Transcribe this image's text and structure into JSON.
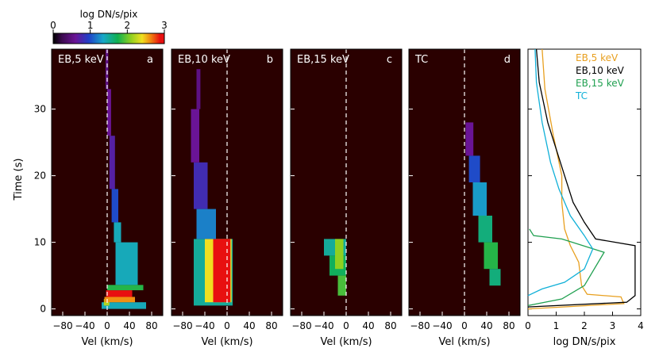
{
  "colorbar": {
    "title": "log DN/s/pix",
    "ticks": [
      "0",
      "1",
      "2",
      "3"
    ],
    "range": [
      0,
      3
    ],
    "colormap": "rainbow (IDL-style: black-purple-blue-cyan-green-yellow-red)"
  },
  "ylabel": "Time (s)",
  "chart_data": [
    {
      "type": "heatmap",
      "panel_label": "EB,5 keV",
      "letter": "a",
      "xlabel": "Vel (km/s)",
      "xlim": [
        -100,
        100
      ],
      "ylim": [
        -1,
        39
      ],
      "xticks": [
        "−80",
        "−40",
        "0",
        "40",
        "80"
      ],
      "yticks": [
        "0",
        "10",
        "20",
        "30"
      ],
      "background": "#2a0000",
      "zero_line": "dashed white at 0 km/s",
      "value_range": [
        0,
        3
      ],
      "cells": [
        {
          "t0": 0,
          "t1": 1,
          "v0": -10,
          "v1": 70,
          "z": 1.4
        },
        {
          "t0": 0.5,
          "t1": 1.5,
          "v0": -6,
          "v1": 4,
          "z": 2.2
        },
        {
          "t0": 1,
          "t1": 1.8,
          "v0": -5,
          "v1": 50,
          "z": 2.6
        },
        {
          "t0": 1.8,
          "t1": 2.8,
          "v0": -2,
          "v1": 45,
          "z": 2.9
        },
        {
          "t0": 2.8,
          "t1": 3.6,
          "v0": 0,
          "v1": 65,
          "z": 1.8
        },
        {
          "t0": 3.6,
          "t1": 10,
          "v0": 15,
          "v1": 55,
          "z": 1.4
        },
        {
          "t0": 10,
          "t1": 13,
          "v0": 12,
          "v1": 25,
          "z": 1.4
        },
        {
          "t0": 13,
          "t1": 18,
          "v0": 8,
          "v1": 20,
          "z": 1.0
        },
        {
          "t0": 18,
          "t1": 26,
          "v0": 4,
          "v1": 14,
          "z": 0.7
        },
        {
          "t0": 26,
          "t1": 33,
          "v0": 0,
          "v1": 7,
          "z": 0.6
        },
        {
          "t0": 33,
          "t1": 39,
          "v0": -3,
          "v1": 2,
          "z": 0.5
        }
      ]
    },
    {
      "type": "heatmap",
      "panel_label": "EB,10 keV",
      "letter": "b",
      "xlabel": "Vel (km/s)",
      "xlim": [
        -100,
        100
      ],
      "ylim": [
        -1,
        39
      ],
      "xticks": [
        "−80",
        "−40",
        "0",
        "40",
        "80"
      ],
      "background": "#2a0000",
      "zero_line": "dashed white at 0 km/s",
      "value_range": [
        0,
        3
      ],
      "cells": [
        {
          "t0": 0.5,
          "t1": 10.5,
          "v0": -60,
          "v1": 10,
          "z": 1.5
        },
        {
          "t0": 1,
          "t1": 10.5,
          "v0": -40,
          "v1": 8,
          "z": 2.4
        },
        {
          "t0": 1,
          "t1": 10.5,
          "v0": -25,
          "v1": 6,
          "z": 2.9
        },
        {
          "t0": 10.5,
          "t1": 15,
          "v0": -55,
          "v1": -20,
          "z": 1.2
        },
        {
          "t0": 15,
          "t1": 22,
          "v0": -60,
          "v1": -35,
          "z": 0.8
        },
        {
          "t0": 22,
          "t1": 30,
          "v0": -65,
          "v1": -50,
          "z": 0.6
        },
        {
          "t0": 30,
          "t1": 36,
          "v0": -55,
          "v1": -48,
          "z": 0.5
        }
      ]
    },
    {
      "type": "heatmap",
      "panel_label": "EB,15 keV",
      "letter": "c",
      "xlabel": "Vel (km/s)",
      "xlim": [
        -100,
        100
      ],
      "ylim": [
        -1,
        39
      ],
      "xticks": [
        "−80",
        "−40",
        "0",
        "40",
        "80"
      ],
      "background": "#2a0000",
      "zero_line": "dashed white at 0 km/s",
      "value_range": [
        0,
        3
      ],
      "cells": [
        {
          "t0": 8,
          "t1": 10.5,
          "v0": -40,
          "v1": 0,
          "z": 1.5
        },
        {
          "t0": 5,
          "t1": 8,
          "v0": -30,
          "v1": 0,
          "z": 1.7
        },
        {
          "t0": 2,
          "t1": 5,
          "v0": -15,
          "v1": 0,
          "z": 1.9
        },
        {
          "t0": 6,
          "t1": 10.5,
          "v0": -20,
          "v1": -5,
          "z": 2.1
        }
      ]
    },
    {
      "type": "heatmap",
      "panel_label": "TC",
      "letter": "d",
      "xlabel": "Vel (km/s)",
      "xlim": [
        -100,
        100
      ],
      "ylim": [
        -1,
        39
      ],
      "xticks": [
        "−80",
        "−40",
        "0",
        "40",
        "80"
      ],
      "background": "#2a0000",
      "zero_line": "dashed white at 0 km/s",
      "value_range": [
        0,
        3
      ],
      "cells": [
        {
          "t0": 3.5,
          "t1": 6,
          "v0": 45,
          "v1": 65,
          "z": 1.6
        },
        {
          "t0": 6,
          "t1": 10,
          "v0": 35,
          "v1": 60,
          "z": 1.8
        },
        {
          "t0": 10,
          "t1": 14,
          "v0": 25,
          "v1": 50,
          "z": 1.6
        },
        {
          "t0": 14,
          "t1": 19,
          "v0": 15,
          "v1": 40,
          "z": 1.3
        },
        {
          "t0": 19,
          "t1": 23,
          "v0": 8,
          "v1": 28,
          "z": 1.0
        },
        {
          "t0": 23,
          "t1": 28,
          "v0": 2,
          "v1": 16,
          "z": 0.6
        }
      ]
    },
    {
      "type": "line",
      "xlabel": "log DN/s/pix",
      "xlim": [
        0,
        4
      ],
      "ylim": [
        -1,
        39
      ],
      "xticks": [
        "0",
        "1",
        "2",
        "3",
        "4"
      ],
      "legend_position": "top-right",
      "series": [
        {
          "name": "EB,5 keV",
          "color": "#e8a020",
          "points": [
            [
              0,
              0
            ],
            [
              3.4,
              0.8
            ],
            [
              3.3,
              1.8
            ],
            [
              2.1,
              2.2
            ],
            [
              1.9,
              3.5
            ],
            [
              1.8,
              7
            ],
            [
              1.5,
              9.5
            ],
            [
              1.3,
              12
            ],
            [
              1.2,
              16
            ],
            [
              1.2,
              20
            ],
            [
              0.9,
              26
            ],
            [
              0.6,
              33
            ],
            [
              0.5,
              39
            ]
          ]
        },
        {
          "name": "EB,10 keV",
          "color": "#000000",
          "points": [
            [
              0,
              0.3
            ],
            [
              3.5,
              1
            ],
            [
              3.8,
              2
            ],
            [
              3.8,
              9.5
            ],
            [
              2.4,
              10.5
            ],
            [
              2.0,
              13
            ],
            [
              1.6,
              16
            ],
            [
              1.3,
              20
            ],
            [
              0.7,
              28
            ],
            [
              0.4,
              34
            ],
            [
              0.3,
              39
            ]
          ]
        },
        {
          "name": "EB,15 keV",
          "color": "#20a050",
          "points": [
            [
              0,
              0.5
            ],
            [
              1.2,
              1.5
            ],
            [
              2.0,
              3.5
            ],
            [
              2.7,
              8.5
            ],
            [
              1.2,
              10.5
            ],
            [
              0.2,
              11
            ],
            [
              0.05,
              12
            ]
          ]
        },
        {
          "name": "TC",
          "color": "#10b0d8",
          "points": [
            [
              0,
              2
            ],
            [
              0.5,
              3
            ],
            [
              1.3,
              4
            ],
            [
              2.0,
              6
            ],
            [
              2.3,
              9
            ],
            [
              2.0,
              11
            ],
            [
              1.5,
              14
            ],
            [
              1.1,
              18
            ],
            [
              0.8,
              22
            ],
            [
              0.5,
              28
            ],
            [
              0.3,
              34
            ],
            [
              0.25,
              39
            ]
          ]
        }
      ]
    }
  ]
}
